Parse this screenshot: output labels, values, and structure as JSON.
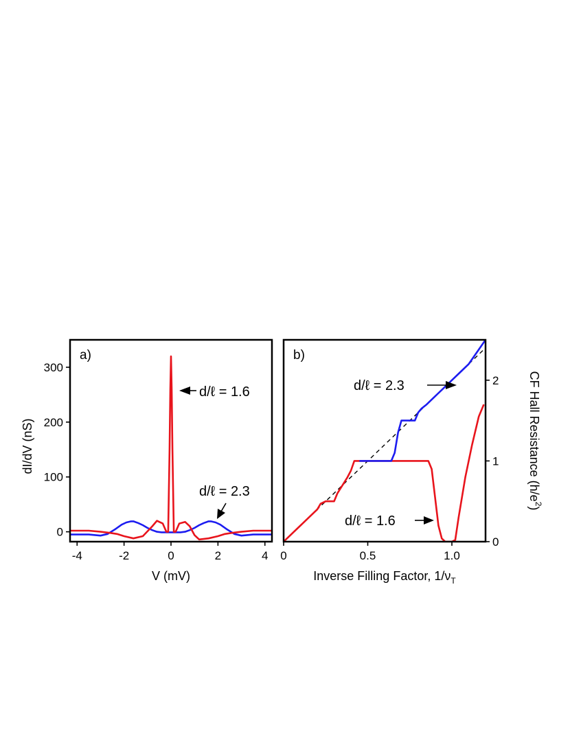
{
  "chart_data": [
    {
      "panel_label": "a)",
      "type": "line",
      "xlabel": "V  (mV)",
      "ylabel": "dI/dV  (nS)",
      "xlim": [
        -4.3,
        4.3
      ],
      "ylim": [
        -18,
        350
      ],
      "xticks": [
        -4,
        -2,
        0,
        2,
        4
      ],
      "yticks": [
        0,
        100,
        200,
        300
      ],
      "grid": false,
      "annotations": [
        {
          "text": "d/ℓ  = 1.6",
          "series_color": "#e8141c"
        },
        {
          "text": "d/ℓ  = 2.3",
          "series_color": "#1c1cf0"
        }
      ],
      "series": [
        {
          "color": "#1c1cf0",
          "x": [
            -4.3,
            -3.5,
            -3.0,
            -2.7,
            -2.4,
            -2.1,
            -1.9,
            -1.7,
            -1.6,
            -1.4,
            -1.2,
            -1.0,
            -0.8,
            -0.6,
            -0.4,
            -0.2,
            0.0,
            0.2,
            0.4,
            0.6,
            0.8,
            1.0,
            1.2,
            1.4,
            1.6,
            1.7,
            1.9,
            2.1,
            2.4,
            2.7,
            3.0,
            3.5,
            4.3
          ],
          "values": [
            -5,
            -5,
            -7,
            -4,
            4,
            13,
            17,
            19,
            19,
            16,
            12,
            7,
            3,
            0,
            -1,
            -1,
            -1,
            -1,
            -1,
            0,
            3,
            7,
            12,
            16,
            19,
            19,
            17,
            13,
            4,
            -4,
            -7,
            -5,
            -5
          ]
        },
        {
          "color": "#e8141c",
          "x": [
            -4.3,
            -3.5,
            -3.0,
            -2.6,
            -2.3,
            -2.0,
            -1.6,
            -1.2,
            -0.8,
            -0.6,
            -0.35,
            -0.2,
            -0.12,
            -0.06,
            -0.03,
            0.0,
            0.03,
            0.06,
            0.12,
            0.2,
            0.35,
            0.6,
            0.8,
            1.0,
            1.2,
            1.6,
            2.0,
            2.3,
            2.6,
            3.0,
            3.5,
            4.3
          ],
          "values": [
            2,
            2,
            0,
            -2,
            -4,
            -8,
            -12,
            -8,
            10,
            20,
            15,
            0,
            0,
            150,
            260,
            320,
            260,
            150,
            0,
            0,
            15,
            18,
            10,
            -6,
            -14,
            -12,
            -8,
            -4,
            -2,
            0,
            2,
            2
          ]
        }
      ]
    },
    {
      "panel_label": "b)",
      "type": "line",
      "xlabel": "Inverse Filling Factor,  1/ν",
      "xlabel_sub": "T",
      "ylabel": "CF Hall Resistance  (h/e",
      "ylabel_sup": "2",
      "ylabel_tail": ")",
      "xlim": [
        0,
        1.2
      ],
      "ylim": [
        0,
        2.5
      ],
      "xticks": [
        0,
        0.5,
        1.0
      ],
      "xtick_labels": [
        "0",
        "0.5",
        "1.0"
      ],
      "yticks": [
        0,
        1,
        2
      ],
      "y_axis_side": "right",
      "grid": false,
      "annotations": [
        {
          "text": "d/ℓ  = 2.3",
          "series_color": "#1c1cf0"
        },
        {
          "text": "d/ℓ  = 1.6",
          "series_color": "#e8141c"
        }
      ],
      "series": [
        {
          "color": "#000000",
          "style": "dashed",
          "x": [
            0,
            1.2
          ],
          "values": [
            0,
            2.4
          ]
        },
        {
          "color": "#e8141c",
          "x": [
            0,
            0.05,
            0.1,
            0.15,
            0.18,
            0.2,
            0.22,
            0.25,
            0.3,
            0.32,
            0.35,
            0.38,
            0.4,
            0.42,
            0.45,
            0.6,
            0.75,
            0.86,
            0.88,
            0.9,
            0.92,
            0.94,
            0.96,
            1.0,
            1.02,
            1.04,
            1.08,
            1.12,
            1.16,
            1.19
          ],
          "values": [
            0,
            0.1,
            0.2,
            0.3,
            0.36,
            0.4,
            0.47,
            0.5,
            0.5,
            0.6,
            0.7,
            0.8,
            0.88,
            1.0,
            1.0,
            1.0,
            1.0,
            1.0,
            0.9,
            0.55,
            0.2,
            0.04,
            0,
            0,
            0.02,
            0.3,
            0.8,
            1.2,
            1.55,
            1.7
          ]
        },
        {
          "color": "#1c1cf0",
          "x": [
            0.45,
            0.55,
            0.64,
            0.66,
            0.68,
            0.7,
            0.72,
            0.75,
            0.78,
            0.8,
            0.82,
            0.85,
            0.9,
            0.95,
            1.0,
            1.05,
            1.1,
            1.15,
            1.2
          ],
          "values": [
            1.0,
            1.0,
            1.0,
            1.1,
            1.35,
            1.5,
            1.5,
            1.5,
            1.5,
            1.6,
            1.65,
            1.7,
            1.8,
            1.9,
            2.0,
            2.1,
            2.2,
            2.35,
            2.5
          ]
        }
      ]
    }
  ]
}
